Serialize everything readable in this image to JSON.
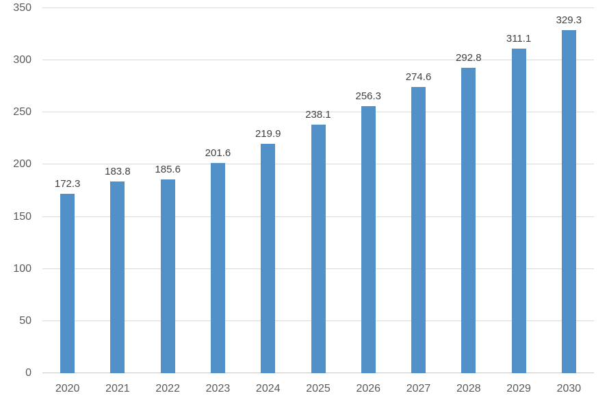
{
  "chart_data": {
    "type": "bar",
    "categories": [
      "2020",
      "2021",
      "2022",
      "2023",
      "2024",
      "2025",
      "2026",
      "2027",
      "2028",
      "2029",
      "2030"
    ],
    "values": [
      172.3,
      183.8,
      185.6,
      201.6,
      219.9,
      238.1,
      256.3,
      274.6,
      292.8,
      311.1,
      329.3
    ],
    "data_labels": [
      "172.3",
      "183.8",
      "185.6",
      "201.6",
      "219.9",
      "238.1",
      "256.3",
      "274.6",
      "292.8",
      "311.1",
      "329.3"
    ],
    "title": "",
    "xlabel": "",
    "ylabel": "",
    "ylim": [
      0,
      350
    ],
    "yticks": [
      0,
      50,
      100,
      150,
      200,
      250,
      300,
      350
    ],
    "ytick_labels": [
      "0",
      "50",
      "100",
      "150",
      "200",
      "250",
      "300",
      "350"
    ],
    "grid": true,
    "legend": false,
    "colors": {
      "bar": "#5290c8",
      "gridline": "#d9d9d9",
      "axis_line": "#c6c6c6",
      "data_label": "#404040",
      "tick_label": "#595959",
      "background": "#ffffff"
    }
  }
}
